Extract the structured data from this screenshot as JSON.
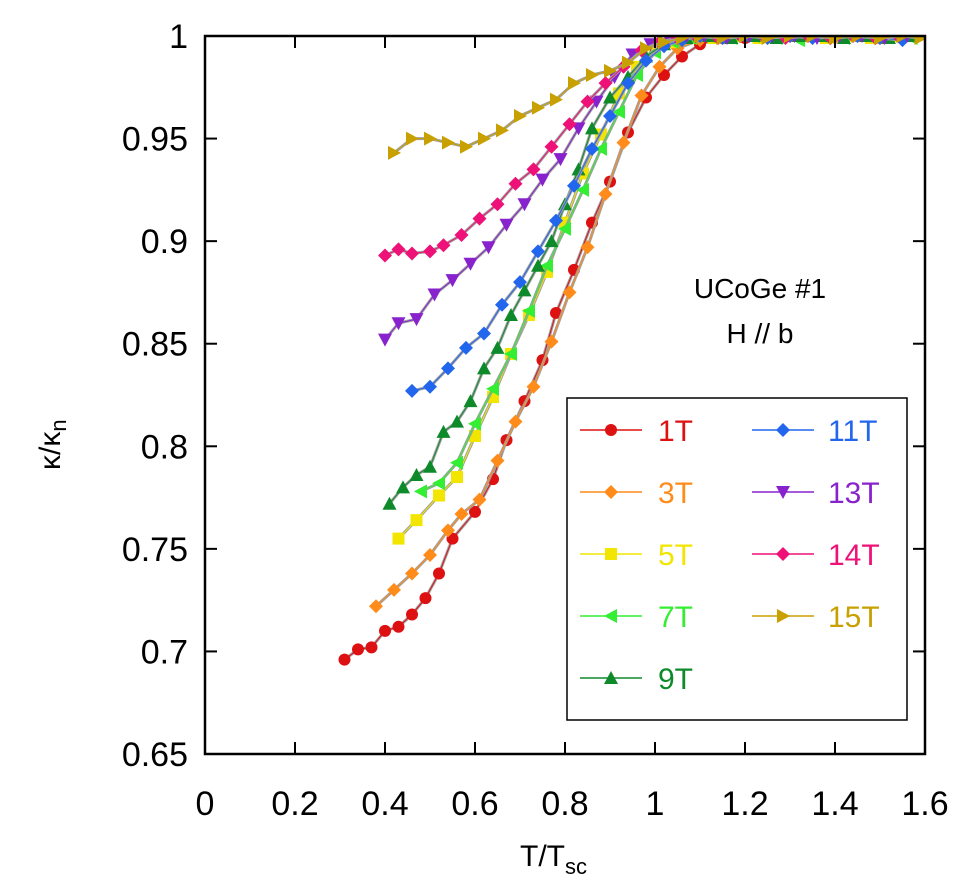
{
  "chart_data": {
    "type": "line",
    "title": "",
    "xlabel": "T/T",
    "xlabel_sub": "sc",
    "ylabel": "κ/κ",
    "ylabel_sub": "n",
    "xlim": [
      0,
      1.6
    ],
    "ylim": [
      0.65,
      1.0
    ],
    "xticks": [
      "0",
      "0.2",
      "0.4",
      "0.6",
      "0.8",
      "1",
      "1.2",
      "1.4",
      "1.6"
    ],
    "yticks": [
      "0.65",
      "0.7",
      "0.75",
      "0.8",
      "0.85",
      "0.9",
      "0.95",
      "1"
    ],
    "xtick_values": [
      0,
      0.2,
      0.4,
      0.6,
      0.8,
      1.0,
      1.2,
      1.4,
      1.6
    ],
    "ytick_values": [
      0.65,
      0.7,
      0.75,
      0.8,
      0.85,
      0.9,
      0.95,
      1.0
    ],
    "annotation": [
      "UCoGe  #1",
      "H // b"
    ],
    "legend_position": "lower-right",
    "grid": false,
    "series": [
      {
        "name": "1T",
        "color": "#dd1111",
        "marker": "circle",
        "x": [
          0.31,
          0.34,
          0.37,
          0.4,
          0.43,
          0.46,
          0.49,
          0.52,
          0.55,
          0.6,
          0.64,
          0.67,
          0.71,
          0.75,
          0.78,
          0.82,
          0.86,
          0.9,
          0.94,
          0.98,
          1.02,
          1.06,
          1.1,
          1.15,
          1.2,
          1.3,
          1.4,
          1.45,
          1.5,
          1.55
        ],
        "y": [
          0.696,
          0.701,
          0.702,
          0.71,
          0.712,
          0.718,
          0.726,
          0.738,
          0.755,
          0.768,
          0.784,
          0.803,
          0.822,
          0.842,
          0.865,
          0.886,
          0.909,
          0.929,
          0.953,
          0.97,
          0.981,
          0.99,
          0.996,
          0.999,
          0.999,
          1.0,
          1.0,
          1.0,
          0.999,
          1.0
        ]
      },
      {
        "name": "3T",
        "color": "#ff8c1a",
        "marker": "diamond",
        "x": [
          0.38,
          0.42,
          0.46,
          0.5,
          0.54,
          0.57,
          0.61,
          0.65,
          0.69,
          0.73,
          0.77,
          0.81,
          0.85,
          0.89,
          0.93,
          0.97,
          1.01,
          1.05,
          1.1,
          1.15,
          1.2,
          1.25,
          1.3,
          1.35,
          1.4,
          1.45,
          1.5,
          1.55
        ],
        "y": [
          0.722,
          0.73,
          0.738,
          0.747,
          0.759,
          0.767,
          0.774,
          0.793,
          0.812,
          0.829,
          0.851,
          0.875,
          0.897,
          0.923,
          0.948,
          0.971,
          0.985,
          0.994,
          0.998,
          0.999,
          1.0,
          0.999,
          1.0,
          0.999,
          0.999,
          1.0,
          0.999,
          1.0
        ]
      },
      {
        "name": "5T",
        "color": "#f2e600",
        "marker": "square",
        "x": [
          0.43,
          0.47,
          0.52,
          0.56,
          0.6,
          0.64,
          0.68,
          0.72,
          0.76,
          0.8,
          0.84,
          0.88,
          0.92,
          0.96,
          1.0,
          1.04,
          1.08,
          1.13,
          1.18,
          1.23,
          1.28,
          1.33,
          1.38,
          1.43,
          1.48,
          1.53
        ],
        "y": [
          0.755,
          0.764,
          0.776,
          0.785,
          0.805,
          0.824,
          0.845,
          0.864,
          0.885,
          0.909,
          0.933,
          0.952,
          0.972,
          0.985,
          0.993,
          0.997,
          0.999,
          0.999,
          1.0,
          0.999,
          1.0,
          1.0,
          0.999,
          1.0,
          0.999,
          1.0
        ]
      },
      {
        "name": "7T",
        "color": "#33ee33",
        "marker": "tri-left",
        "x": [
          0.48,
          0.52,
          0.56,
          0.6,
          0.64,
          0.68,
          0.72,
          0.76,
          0.8,
          0.84,
          0.88,
          0.92,
          0.96,
          1.0,
          1.04,
          1.08,
          1.12,
          1.17,
          1.22,
          1.27,
          1.32,
          1.37,
          1.42,
          1.47,
          1.52,
          1.57
        ],
        "y": [
          0.778,
          0.782,
          0.792,
          0.811,
          0.828,
          0.845,
          0.866,
          0.888,
          0.906,
          0.925,
          0.945,
          0.963,
          0.981,
          0.992,
          0.997,
          0.999,
          1.0,
          0.999,
          1.0,
          0.999,
          0.998,
          1.0,
          0.999,
          1.0,
          1.0,
          0.999
        ]
      },
      {
        "name": "9T",
        "color": "#0f8a2a",
        "marker": "tri-up",
        "x": [
          0.41,
          0.44,
          0.47,
          0.5,
          0.53,
          0.56,
          0.59,
          0.62,
          0.65,
          0.68,
          0.71,
          0.74,
          0.77,
          0.8,
          0.83,
          0.86,
          0.9,
          0.94,
          0.98,
          1.02,
          1.07,
          1.12,
          1.17,
          1.22,
          1.27,
          1.32,
          1.37,
          1.42,
          1.47,
          1.52,
          1.57
        ],
        "y": [
          0.772,
          0.78,
          0.786,
          0.79,
          0.807,
          0.812,
          0.822,
          0.838,
          0.848,
          0.864,
          0.876,
          0.888,
          0.9,
          0.918,
          0.935,
          0.955,
          0.97,
          0.98,
          0.99,
          0.996,
          0.999,
          1.0,
          0.999,
          1.0,
          0.999,
          1.0,
          1.0,
          0.999,
          1.0,
          0.999,
          1.0
        ]
      },
      {
        "name": "11T",
        "color": "#2266ee",
        "marker": "diamond",
        "x": [
          0.46,
          0.5,
          0.54,
          0.58,
          0.62,
          0.66,
          0.7,
          0.74,
          0.78,
          0.82,
          0.86,
          0.9,
          0.94,
          0.98,
          1.02,
          1.06,
          1.1,
          1.15,
          1.2,
          1.25,
          1.3,
          1.35,
          1.4,
          1.45,
          1.5,
          1.55
        ],
        "y": [
          0.827,
          0.829,
          0.838,
          0.848,
          0.855,
          0.869,
          0.88,
          0.895,
          0.91,
          0.927,
          0.945,
          0.961,
          0.977,
          0.988,
          0.995,
          0.998,
          1.0,
          0.999,
          1.0,
          0.999,
          1.0,
          0.999,
          1.0,
          1.0,
          0.999,
          0.998
        ]
      },
      {
        "name": "13T",
        "color": "#8822cc",
        "marker": "tri-down",
        "x": [
          0.4,
          0.43,
          0.47,
          0.51,
          0.55,
          0.59,
          0.63,
          0.67,
          0.71,
          0.75,
          0.79,
          0.83,
          0.87,
          0.91,
          0.95,
          0.99,
          1.03,
          1.07,
          1.11,
          1.16,
          1.21,
          1.26,
          1.31,
          1.36,
          1.41,
          1.46,
          1.51,
          1.56
        ],
        "y": [
          0.852,
          0.86,
          0.862,
          0.874,
          0.881,
          0.889,
          0.897,
          0.908,
          0.918,
          0.93,
          0.94,
          0.955,
          0.968,
          0.98,
          0.991,
          0.996,
          0.999,
          1.0,
          1.0,
          0.999,
          1.0,
          1.0,
          1.0,
          0.999,
          1.0,
          1.0,
          0.999,
          1.0
        ]
      },
      {
        "name": "14T",
        "color": "#ee1177",
        "marker": "diamond",
        "x": [
          0.4,
          0.43,
          0.46,
          0.5,
          0.53,
          0.57,
          0.61,
          0.65,
          0.69,
          0.73,
          0.77,
          0.81,
          0.85,
          0.89,
          0.93,
          0.97,
          1.01,
          1.05,
          1.09,
          1.14,
          1.19,
          1.24,
          1.29,
          1.34,
          1.39,
          1.44,
          1.49,
          1.54
        ],
        "y": [
          0.893,
          0.896,
          0.894,
          0.895,
          0.898,
          0.903,
          0.911,
          0.918,
          0.928,
          0.935,
          0.946,
          0.957,
          0.968,
          0.977,
          0.985,
          0.993,
          0.997,
          0.999,
          1.0,
          0.999,
          1.0,
          1.0,
          0.999,
          1.0,
          0.999,
          1.0,
          0.999,
          1.0
        ]
      },
      {
        "name": "15T",
        "color": "#c8a000",
        "marker": "tri-right",
        "x": [
          0.42,
          0.46,
          0.5,
          0.54,
          0.58,
          0.62,
          0.66,
          0.7,
          0.74,
          0.78,
          0.82,
          0.86,
          0.9,
          0.94,
          0.98,
          1.02,
          1.06,
          1.1,
          1.15,
          1.2,
          1.25,
          1.3,
          1.35,
          1.4,
          1.45,
          1.5,
          1.55,
          1.59
        ],
        "y": [
          0.943,
          0.95,
          0.95,
          0.948,
          0.946,
          0.95,
          0.954,
          0.961,
          0.965,
          0.969,
          0.977,
          0.981,
          0.983,
          0.987,
          0.994,
          0.997,
          0.999,
          1.0,
          0.999,
          1.0,
          0.999,
          1.0,
          1.0,
          0.999,
          1.0,
          0.999,
          1.0,
          0.999
        ]
      }
    ]
  }
}
